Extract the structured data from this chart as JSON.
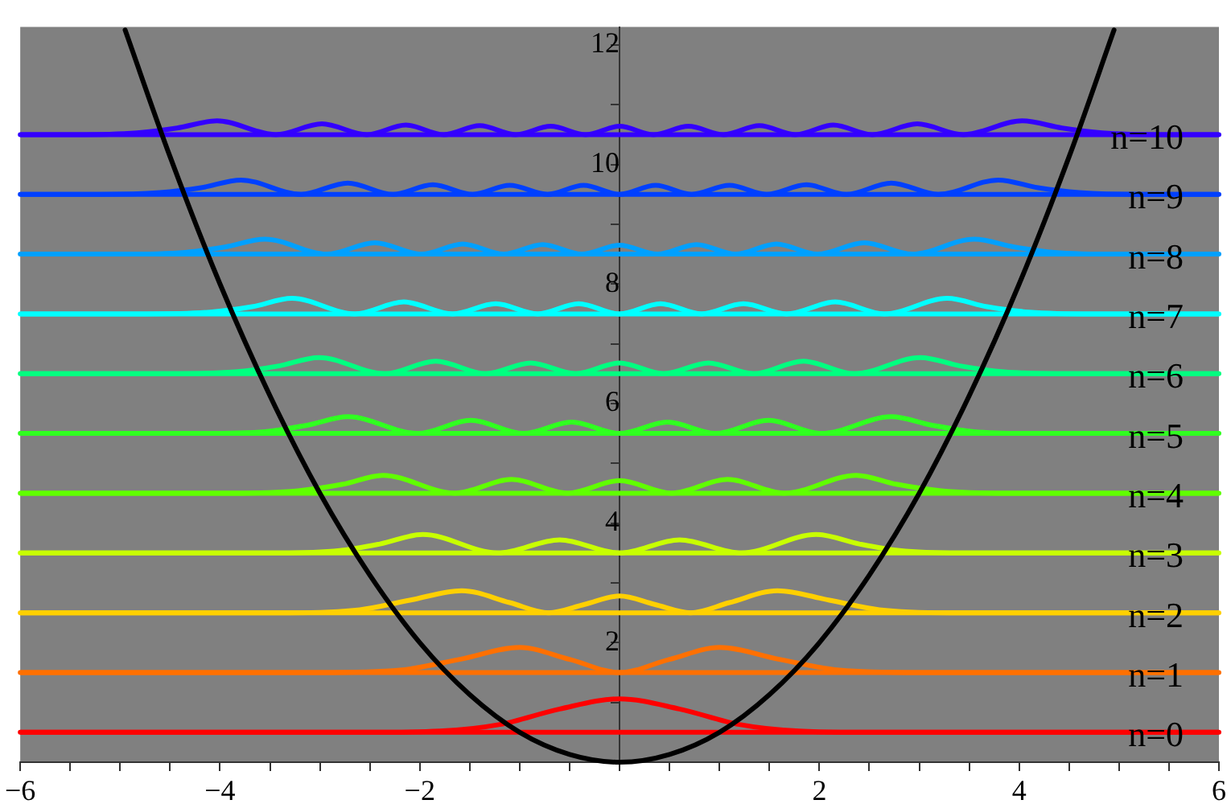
{
  "chart_data": {
    "type": "line",
    "marker": "none",
    "line_style": "solid",
    "xlim": [
      -6,
      6
    ],
    "ylim": [
      0,
      12.3
    ],
    "xticks": [
      {
        "value": -6,
        "label": "−6"
      },
      {
        "value": -5.5,
        "label": null
      },
      {
        "value": -5,
        "label": null
      },
      {
        "value": -4.5,
        "label": null
      },
      {
        "value": -4,
        "label": "−4"
      },
      {
        "value": -3.5,
        "label": null
      },
      {
        "value": -3,
        "label": null
      },
      {
        "value": -2.5,
        "label": null
      },
      {
        "value": -2,
        "label": "−2"
      },
      {
        "value": -1.5,
        "label": null
      },
      {
        "value": -1,
        "label": null
      },
      {
        "value": -0.5,
        "label": null
      },
      {
        "value": 0,
        "label": null
      },
      {
        "value": 0.5,
        "label": null
      },
      {
        "value": 1,
        "label": null
      },
      {
        "value": 1.5,
        "label": null
      },
      2,
      {
        "value": 2.5,
        "label": null
      },
      {
        "value": 3,
        "label": null
      },
      {
        "value": 3.5,
        "label": null
      },
      4,
      {
        "value": 4.5,
        "label": null
      },
      {
        "value": 5,
        "label": null
      },
      {
        "value": 5.5,
        "label": null
      },
      6
    ],
    "yticks": [
      {
        "value": 1,
        "label": null
      },
      2,
      {
        "value": 3,
        "label": null
      },
      4,
      {
        "value": 5,
        "label": null
      },
      6,
      {
        "value": 7,
        "label": null
      },
      8,
      {
        "value": 9,
        "label": null
      },
      10,
      {
        "value": 11,
        "label": null
      },
      12
    ],
    "ref_lines": [
      {
        "axis": "y",
        "value": 0.5,
        "color": "#ff0000"
      },
      {
        "axis": "y",
        "value": 1.5,
        "color": "#ff7000"
      },
      {
        "axis": "y",
        "value": 2.5,
        "color": "#ffd000"
      },
      {
        "axis": "y",
        "value": 3.5,
        "color": "#c8ff00"
      },
      {
        "axis": "y",
        "value": 4.5,
        "color": "#60ff00"
      },
      {
        "axis": "y",
        "value": 5.5,
        "color": "#30ff20"
      },
      {
        "axis": "y",
        "value": 6.5,
        "color": "#00ff80"
      },
      {
        "axis": "y",
        "value": 7.5,
        "color": "#00ffff"
      },
      {
        "axis": "y",
        "value": 8.5,
        "color": "#00a0ff"
      },
      {
        "axis": "y",
        "value": 9.5,
        "color": "#0040ff"
      },
      {
        "axis": "y",
        "value": 10.5,
        "color": "#3300ff"
      }
    ],
    "series": [
      {
        "name": "n=0",
        "color": "#ff0000",
        "x": [
          -6,
          -2.5,
          -1.8,
          -1.2,
          -0.6,
          0,
          0.6,
          1.2,
          1.8,
          2.5,
          6
        ],
        "values": [
          0.5,
          0.5,
          0.52,
          0.63,
          0.89,
          1.06,
          0.89,
          0.63,
          0.52,
          0.5,
          0.5
        ]
      },
      {
        "name": "n=1",
        "color": "#ff7000",
        "x": [
          -6,
          -3,
          -2.2,
          -1.6,
          -1,
          -0.5,
          0,
          0.5,
          1,
          1.6,
          2.2,
          3,
          6
        ],
        "values": [
          1.5,
          1.5,
          1.54,
          1.72,
          1.92,
          1.72,
          1.5,
          1.72,
          1.92,
          1.72,
          1.54,
          1.5,
          1.5
        ]
      },
      {
        "name": "n=2",
        "color": "#ffd000",
        "x": [
          -6,
          -3.3,
          -2.6,
          -2.1,
          -1.58,
          -1.1,
          -0.71,
          -0.35,
          0,
          0.35,
          0.71,
          1.1,
          1.58,
          2.1,
          2.6,
          3.3,
          6
        ],
        "values": [
          2.5,
          2.5,
          2.55,
          2.71,
          2.87,
          2.67,
          2.5,
          2.64,
          2.78,
          2.64,
          2.5,
          2.67,
          2.87,
          2.71,
          2.55,
          2.5,
          2.5
        ]
      },
      {
        "name": "n=3",
        "color": "#c8ff00",
        "x": [
          -6,
          -3.4,
          -2.8,
          -2.4,
          -1.97,
          -1.22,
          -0.6,
          0,
          0.6,
          1.22,
          1.97,
          2.4,
          2.8,
          3.4,
          6
        ],
        "values": [
          3.5,
          3.5,
          3.54,
          3.65,
          3.81,
          3.5,
          3.72,
          3.5,
          3.72,
          3.5,
          3.81,
          3.65,
          3.54,
          3.5,
          3.5
        ]
      },
      {
        "name": "n=4",
        "color": "#60ff00",
        "x": [
          -6,
          -3.87,
          -3.22,
          -2.77,
          -2.37,
          -1.65,
          -1.08,
          -0.52,
          0,
          0.52,
          1.08,
          1.65,
          2.37,
          2.77,
          3.22,
          3.87,
          6
        ],
        "values": [
          4.5,
          4.5,
          4.54,
          4.65,
          4.8,
          4.5,
          4.73,
          4.5,
          4.71,
          4.5,
          4.73,
          4.5,
          4.8,
          4.65,
          4.54,
          4.5,
          4.5
        ]
      },
      {
        "name": "n=5",
        "color": "#30ff20",
        "x": [
          -6,
          -4.2,
          -3.55,
          -3.12,
          -2.72,
          -2.02,
          -1.49,
          -0.96,
          -0.48,
          0,
          0.48,
          0.96,
          1.49,
          2.02,
          2.72,
          3.12,
          3.55,
          4.2,
          6
        ],
        "values": [
          5.5,
          5.5,
          5.53,
          5.64,
          5.78,
          5.5,
          5.72,
          5.5,
          5.69,
          5.5,
          5.69,
          5.5,
          5.72,
          5.5,
          5.78,
          5.64,
          5.53,
          5.5,
          5.5
        ]
      },
      {
        "name": "n=6",
        "color": "#00ff80",
        "x": [
          -6,
          -4.5,
          -3.85,
          -3.41,
          -3.01,
          -2.35,
          -1.84,
          -1.34,
          -0.89,
          -0.44,
          0,
          0.44,
          0.89,
          1.34,
          1.84,
          2.35,
          3.01,
          3.41,
          3.85,
          4.5,
          6
        ],
        "values": [
          6.5,
          6.5,
          6.53,
          6.63,
          6.77,
          6.5,
          6.71,
          6.5,
          6.68,
          6.5,
          6.68,
          6.5,
          6.68,
          6.5,
          6.71,
          6.5,
          6.77,
          6.63,
          6.53,
          6.5,
          6.5
        ]
      },
      {
        "name": "n=7",
        "color": "#00ffff",
        "x": [
          -6,
          -4.75,
          -4.1,
          -3.68,
          -3.28,
          -2.65,
          -2.16,
          -1.67,
          -1.24,
          -0.82,
          -0.41,
          0,
          0.41,
          0.82,
          1.24,
          1.67,
          2.16,
          2.65,
          3.28,
          3.68,
          4.1,
          4.75,
          6
        ],
        "values": [
          7.5,
          7.5,
          7.53,
          7.62,
          7.76,
          7.5,
          7.7,
          7.5,
          7.67,
          7.5,
          7.67,
          7.5,
          7.67,
          7.5,
          7.67,
          7.5,
          7.7,
          7.5,
          7.76,
          7.62,
          7.53,
          7.5,
          7.5
        ]
      },
      {
        "name": "n=8",
        "color": "#00a0ff",
        "x": [
          -6,
          -5,
          -4.35,
          -3.95,
          -3.55,
          -2.93,
          -2.45,
          -1.98,
          -1.57,
          -1.16,
          -0.77,
          -0.38,
          0,
          0.38,
          0.77,
          1.16,
          1.57,
          1.98,
          2.45,
          2.93,
          3.55,
          3.95,
          4.35,
          5,
          6
        ],
        "values": [
          8.5,
          8.5,
          8.53,
          8.62,
          8.75,
          8.5,
          8.69,
          8.5,
          8.67,
          8.5,
          8.66,
          8.5,
          8.65,
          8.5,
          8.66,
          8.5,
          8.67,
          8.5,
          8.69,
          8.5,
          8.75,
          8.62,
          8.53,
          8.5,
          8.5
        ]
      },
      {
        "name": "n=9",
        "color": "#0040ff",
        "x": [
          -6,
          -5.2,
          -4.6,
          -4.19,
          -3.79,
          -3.19,
          -2.72,
          -2.27,
          -1.87,
          -1.47,
          -1.1,
          -0.72,
          -0.36,
          0,
          0.36,
          0.72,
          1.1,
          1.47,
          1.87,
          2.27,
          2.72,
          3.19,
          3.79,
          4.19,
          4.6,
          5.2,
          6
        ],
        "values": [
          9.5,
          9.5,
          9.53,
          9.61,
          9.74,
          9.5,
          9.69,
          9.5,
          9.66,
          9.5,
          9.65,
          9.5,
          9.65,
          9.5,
          9.65,
          9.5,
          9.65,
          9.5,
          9.66,
          9.5,
          9.69,
          9.5,
          9.74,
          9.61,
          9.53,
          9.5,
          9.5
        ]
      },
      {
        "name": "n=10",
        "color": "#3300ff",
        "x": [
          -6,
          -5.45,
          -4.83,
          -4.43,
          -4.03,
          -3.44,
          -2.98,
          -2.53,
          -2.14,
          -1.76,
          -1.4,
          -1.04,
          -0.69,
          -0.34,
          0,
          0.34,
          0.69,
          1.04,
          1.4,
          1.76,
          2.14,
          2.53,
          2.98,
          3.44,
          4.03,
          4.43,
          4.83,
          5.45,
          6
        ],
        "values": [
          10.5,
          10.5,
          10.53,
          10.61,
          10.73,
          10.5,
          10.68,
          10.5,
          10.66,
          10.5,
          10.65,
          10.5,
          10.64,
          10.5,
          10.64,
          10.5,
          10.64,
          10.5,
          10.65,
          10.5,
          10.66,
          10.5,
          10.68,
          10.5,
          10.73,
          10.61,
          10.53,
          10.5,
          10.5
        ]
      },
      {
        "color": "#000000",
        "x": [
          -4.95,
          -4.5,
          -4,
          -3.5,
          -3,
          -2.5,
          -2,
          -1.5,
          -1,
          -0.5,
          0,
          0.5,
          1,
          1.5,
          2,
          2.5,
          3,
          3.5,
          4,
          4.5,
          4.95
        ],
        "values": [
          12.25,
          10.13,
          8,
          6.13,
          4.5,
          3.13,
          2,
          1.13,
          0.5,
          0.13,
          0,
          0.13,
          0.5,
          1.13,
          2,
          3.13,
          4.5,
          6.13,
          8,
          10.13,
          12.25
        ]
      }
    ]
  }
}
